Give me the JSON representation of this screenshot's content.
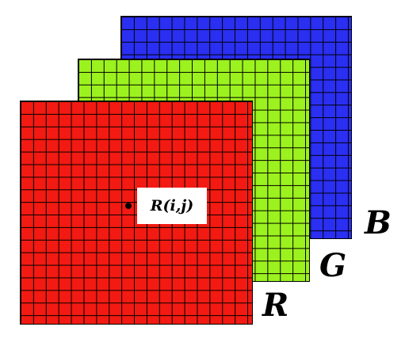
{
  "planes": [
    {
      "id": "B",
      "color": "#2a2ff2"
    },
    {
      "id": "G",
      "color": "#9cf21e"
    },
    {
      "id": "R",
      "color": "#f21a12"
    }
  ],
  "labels": {
    "blue": "B",
    "green": "G",
    "red": "R"
  },
  "pixel": {
    "label": "R(i,j)"
  },
  "colors": {
    "grid_line": "#000000",
    "background": "#ffffff"
  }
}
